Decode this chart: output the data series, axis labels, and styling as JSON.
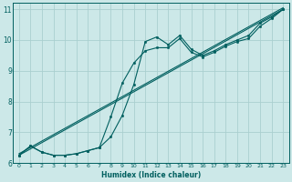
{
  "xlabel": "Humidex (Indice chaleur)",
  "bg_color": "#cce8e8",
  "grid_color": "#aacfcf",
  "line_color": "#005f5f",
  "xlim": [
    -0.5,
    23.5
  ],
  "ylim": [
    6.0,
    11.2
  ],
  "yticks": [
    6,
    7,
    8,
    9,
    10,
    11
  ],
  "xticks": [
    0,
    1,
    2,
    3,
    4,
    5,
    6,
    7,
    8,
    9,
    10,
    11,
    12,
    13,
    14,
    15,
    16,
    17,
    18,
    19,
    20,
    21,
    22,
    23
  ],
  "line1_x": [
    0,
    1,
    2,
    3,
    4,
    5,
    6,
    7,
    8,
    9,
    10,
    11,
    12,
    13,
    14,
    15,
    16,
    17,
    18,
    19,
    20,
    21,
    22,
    23
  ],
  "line1_y": [
    6.25,
    6.55,
    6.35,
    6.25,
    6.25,
    6.3,
    6.4,
    6.5,
    6.85,
    7.55,
    8.55,
    9.95,
    10.1,
    9.85,
    10.15,
    9.7,
    9.5,
    9.65,
    9.85,
    10.0,
    10.15,
    10.55,
    10.75,
    11.0
  ],
  "line2_x": [
    0,
    1,
    2,
    3,
    4,
    5,
    6,
    7,
    8,
    9,
    10,
    11,
    12,
    13,
    14,
    15,
    16,
    17,
    18,
    19,
    20,
    21,
    22,
    23
  ],
  "line2_y": [
    6.25,
    6.55,
    6.35,
    6.25,
    6.25,
    6.3,
    6.4,
    6.5,
    7.5,
    8.6,
    9.25,
    9.65,
    9.75,
    9.75,
    10.05,
    9.6,
    9.45,
    9.6,
    9.8,
    9.95,
    10.05,
    10.45,
    10.7,
    11.0
  ],
  "line3_x": [
    0,
    23
  ],
  "line3_y": [
    6.25,
    11.0
  ],
  "line4_x": [
    0,
    23
  ],
  "line4_y": [
    6.3,
    11.05
  ]
}
